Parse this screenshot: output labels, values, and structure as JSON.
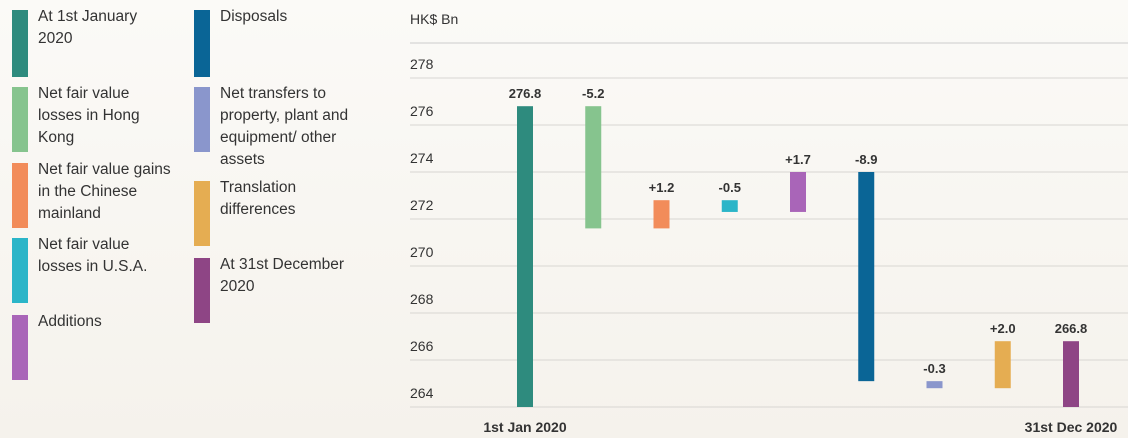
{
  "chart_data": {
    "type": "waterfall",
    "y_label": "HK$ Bn",
    "categories": [
      "1st Jan 2020",
      null,
      null,
      null,
      null,
      null,
      null,
      null,
      "31st Dec 2020"
    ],
    "legend": [
      "At 1st January 2020",
      "Net fair value losses in Hong Kong",
      "Net fair value gains in the Chinese mainland",
      "Net fair value losses in U.S.A.",
      "Additions",
      "Disposals",
      "Net transfers to property, plant and equipment/ other assets",
      "Translation differences",
      "At 31st December 2020"
    ],
    "values": [
      276.8,
      -5.2,
      1.2,
      -0.5,
      1.7,
      -8.9,
      -0.3,
      2.0,
      266.8
    ],
    "value_labels": [
      "276.8",
      "-5.2",
      "+1.2",
      "-0.5",
      "+1.7",
      "-8.9",
      "-0.3",
      "+2.0",
      "266.8"
    ],
    "total_bars": [
      true,
      false,
      false,
      false,
      false,
      false,
      false,
      false,
      true
    ],
    "colors": [
      "#2e8b7e",
      "#86c48e",
      "#f28c5a",
      "#2bb5c8",
      "#a965b8",
      "#0a6596",
      "#8a96cc",
      "#e5ad52",
      "#8e4585"
    ],
    "ylim": [
      264,
      279.5
    ],
    "yticks": [
      264,
      266,
      268,
      270,
      272,
      274,
      276,
      278
    ],
    "grid": true
  }
}
